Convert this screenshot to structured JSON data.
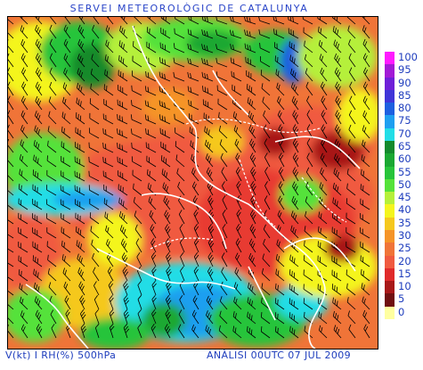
{
  "header": {
    "title": "SERVEI METEOROLÒGIC DE CATALUNYA"
  },
  "footer": {
    "left": "V(kt) I RH(%) 500hPa",
    "right": "ANÀLISI 00UTC 07 JUL 2009"
  },
  "legend": {
    "items": [
      {
        "label": "100",
        "color": "#ff1aff"
      },
      {
        "label": "95",
        "color": "#a21ad6"
      },
      {
        "label": "90",
        "color": "#6e1fd8"
      },
      {
        "label": "85",
        "color": "#3f35d8"
      },
      {
        "label": "80",
        "color": "#1d5fe0"
      },
      {
        "label": "75",
        "color": "#1e9ff0"
      },
      {
        "label": "70",
        "color": "#22dde6"
      },
      {
        "label": "65",
        "color": "#138a2c"
      },
      {
        "label": "60",
        "color": "#1aa832"
      },
      {
        "label": "55",
        "color": "#27c43a"
      },
      {
        "label": "50",
        "color": "#55e23a"
      },
      {
        "label": "45",
        "color": "#b5f03a"
      },
      {
        "label": "40",
        "color": "#f4f51e"
      },
      {
        "label": "35",
        "color": "#f5c81e"
      },
      {
        "label": "30",
        "color": "#f59428"
      },
      {
        "label": "25",
        "color": "#f07438"
      },
      {
        "label": "20",
        "color": "#f05a40"
      },
      {
        "label": "15",
        "color": "#e02a2a"
      },
      {
        "label": "10",
        "color": "#a81818"
      },
      {
        "label": "5",
        "color": "#701010"
      },
      {
        "label": "0",
        "color": "#ffffa0"
      }
    ]
  }
}
